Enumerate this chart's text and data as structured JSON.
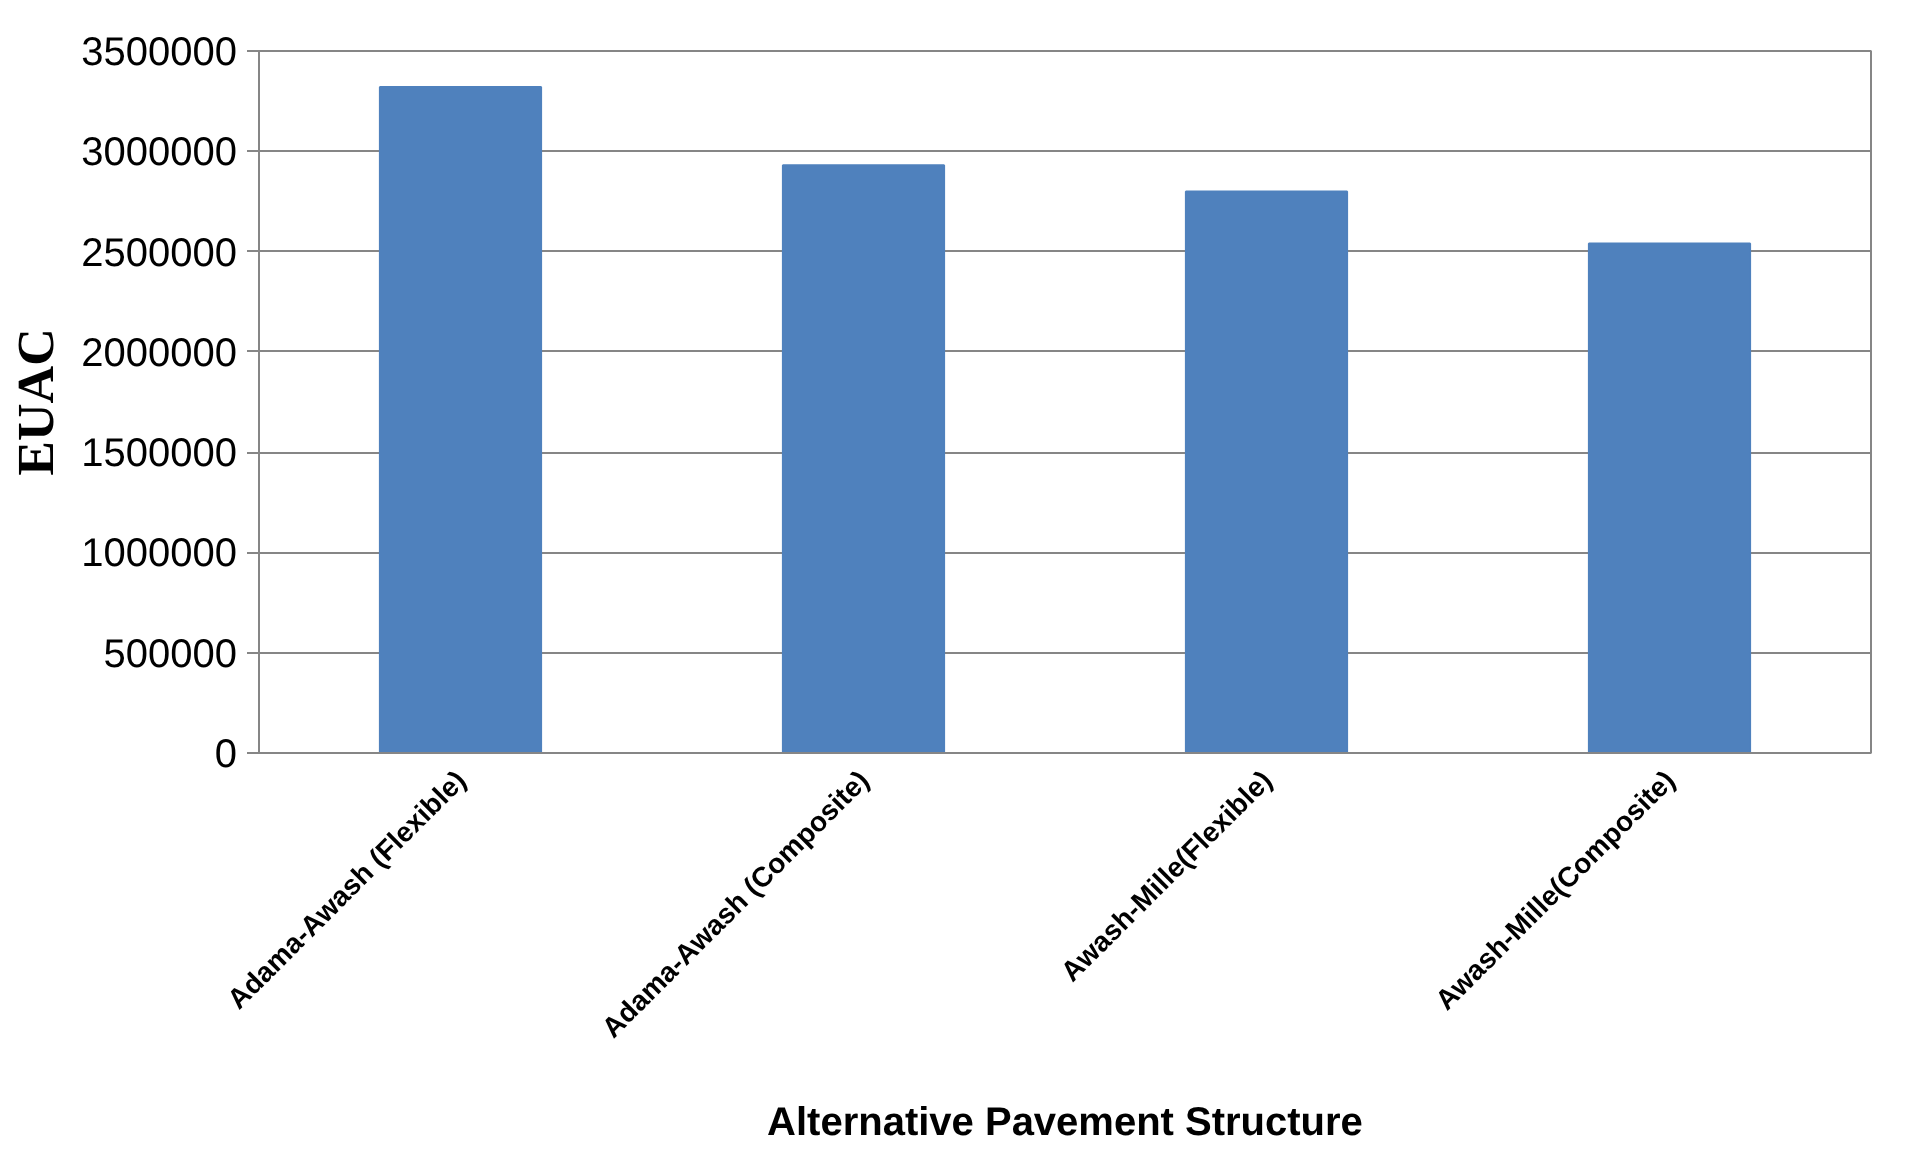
{
  "chart_data": {
    "type": "bar",
    "xlabel": "Alternative Pavement Structure",
    "ylabel": "EUAC",
    "categories": [
      "Adama-Awash (Flexible)",
      "Adama-Awash (Composite)",
      "Awash-Mille(Flexible)",
      "Awash-Mille(Composite)"
    ],
    "values": [
      3320000,
      2930000,
      2800000,
      2540000
    ],
    "color": "#4f81bd",
    "ylim": [
      0,
      3500000
    ],
    "yticks": [
      0,
      500000,
      1000000,
      1500000,
      2000000,
      2500000,
      3000000,
      3500000
    ],
    "grid": "y"
  }
}
